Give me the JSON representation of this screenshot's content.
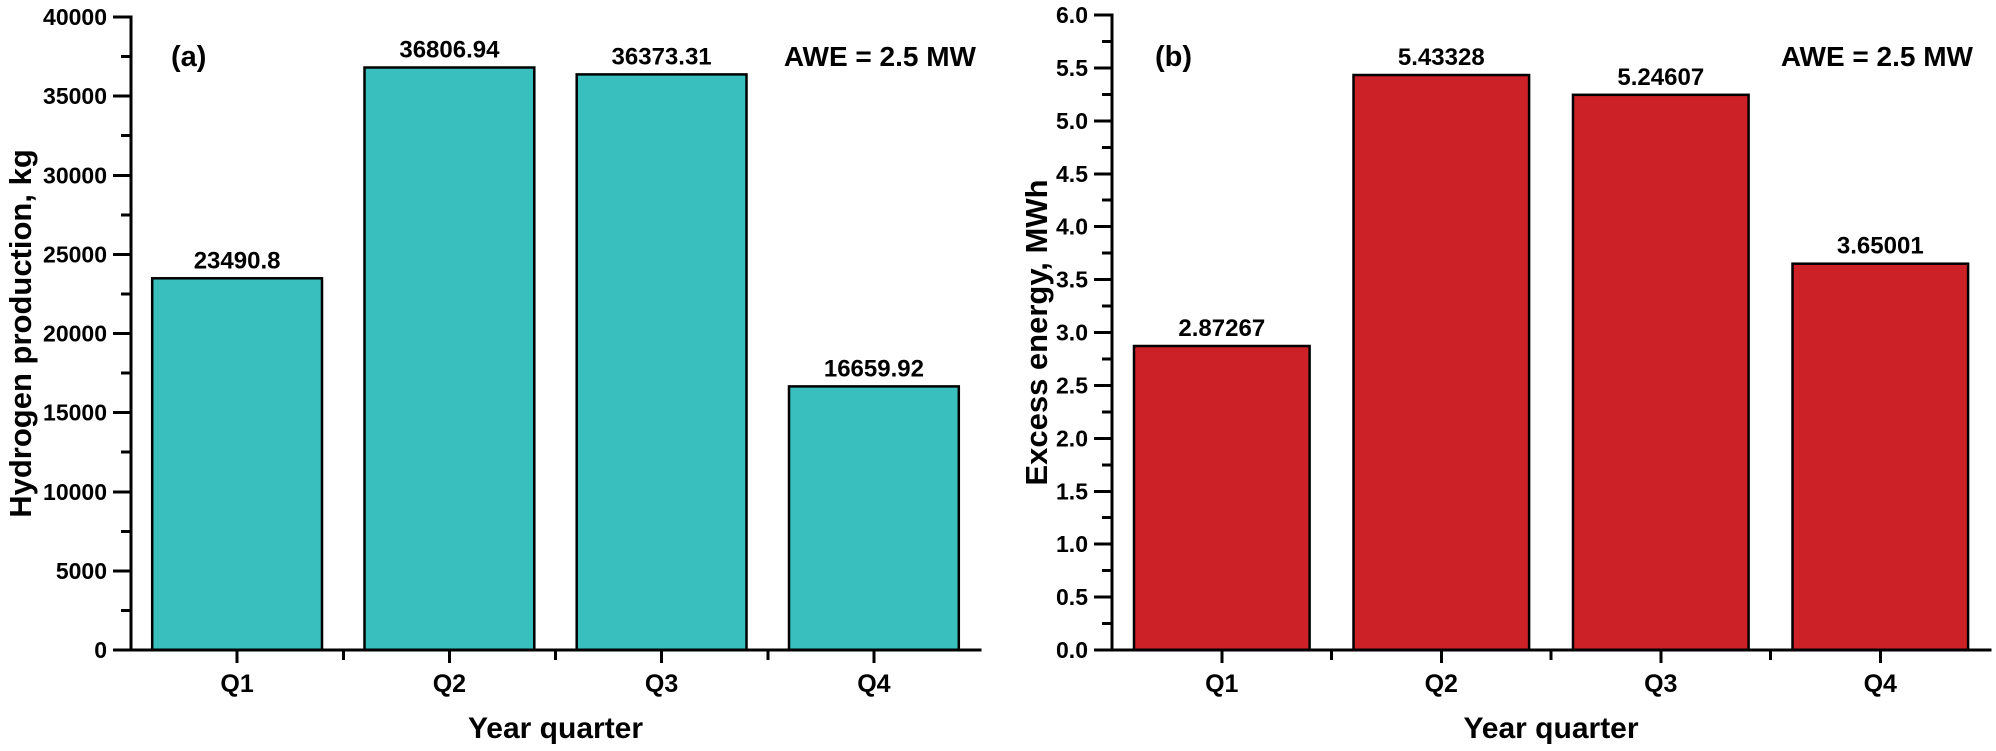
{
  "figure": {
    "kind": "two-panel bar figure",
    "background": "#ffffff",
    "text_color": "#000000",
    "axis_color": "#000000"
  },
  "chart_data": [
    {
      "type": "bar",
      "panel_label": "(a)",
      "annotation": "AWE = 2.5 MW",
      "xlabel": "Year quarter",
      "ylabel": "Hydrogen production, kg",
      "categories": [
        "Q1",
        "Q2",
        "Q3",
        "Q4"
      ],
      "values": [
        23490.8,
        36806.94,
        36373.31,
        16659.92
      ],
      "value_labels": [
        "23490.8",
        "36806.94",
        "36373.31",
        "16659.92"
      ],
      "ylim": [
        0,
        40000
      ],
      "y_major_step": 5000,
      "y_minor_step": 2500,
      "y_tick_labels": [
        "0",
        "5000",
        "10000",
        "15000",
        "20000",
        "25000",
        "30000",
        "35000",
        "40000"
      ],
      "bar_fill": "#3ABFBF",
      "bar_stroke": "#000000",
      "grid": false,
      "legend": "none"
    },
    {
      "type": "bar",
      "panel_label": "(b)",
      "annotation": "AWE = 2.5 MW",
      "xlabel": "Year quarter",
      "ylabel": "Excess energy, MWh",
      "categories": [
        "Q1",
        "Q2",
        "Q3",
        "Q4"
      ],
      "values": [
        2.87267,
        5.43328,
        5.24607,
        3.65001
      ],
      "value_labels": [
        "2.87267",
        "5.43328",
        "5.24607",
        "3.65001"
      ],
      "ylim": [
        0,
        6
      ],
      "y_major_step": 0.5,
      "y_minor_step": 0.25,
      "y_tick_labels": [
        "0.0",
        "0.5",
        "1.0",
        "1.5",
        "2.0",
        "2.5",
        "3.0",
        "3.5",
        "4.0",
        "4.5",
        "5.0",
        "5.5",
        "6.0"
      ],
      "bar_fill": "#CC2127",
      "bar_stroke": "#000000",
      "grid": false,
      "legend": "none"
    }
  ]
}
